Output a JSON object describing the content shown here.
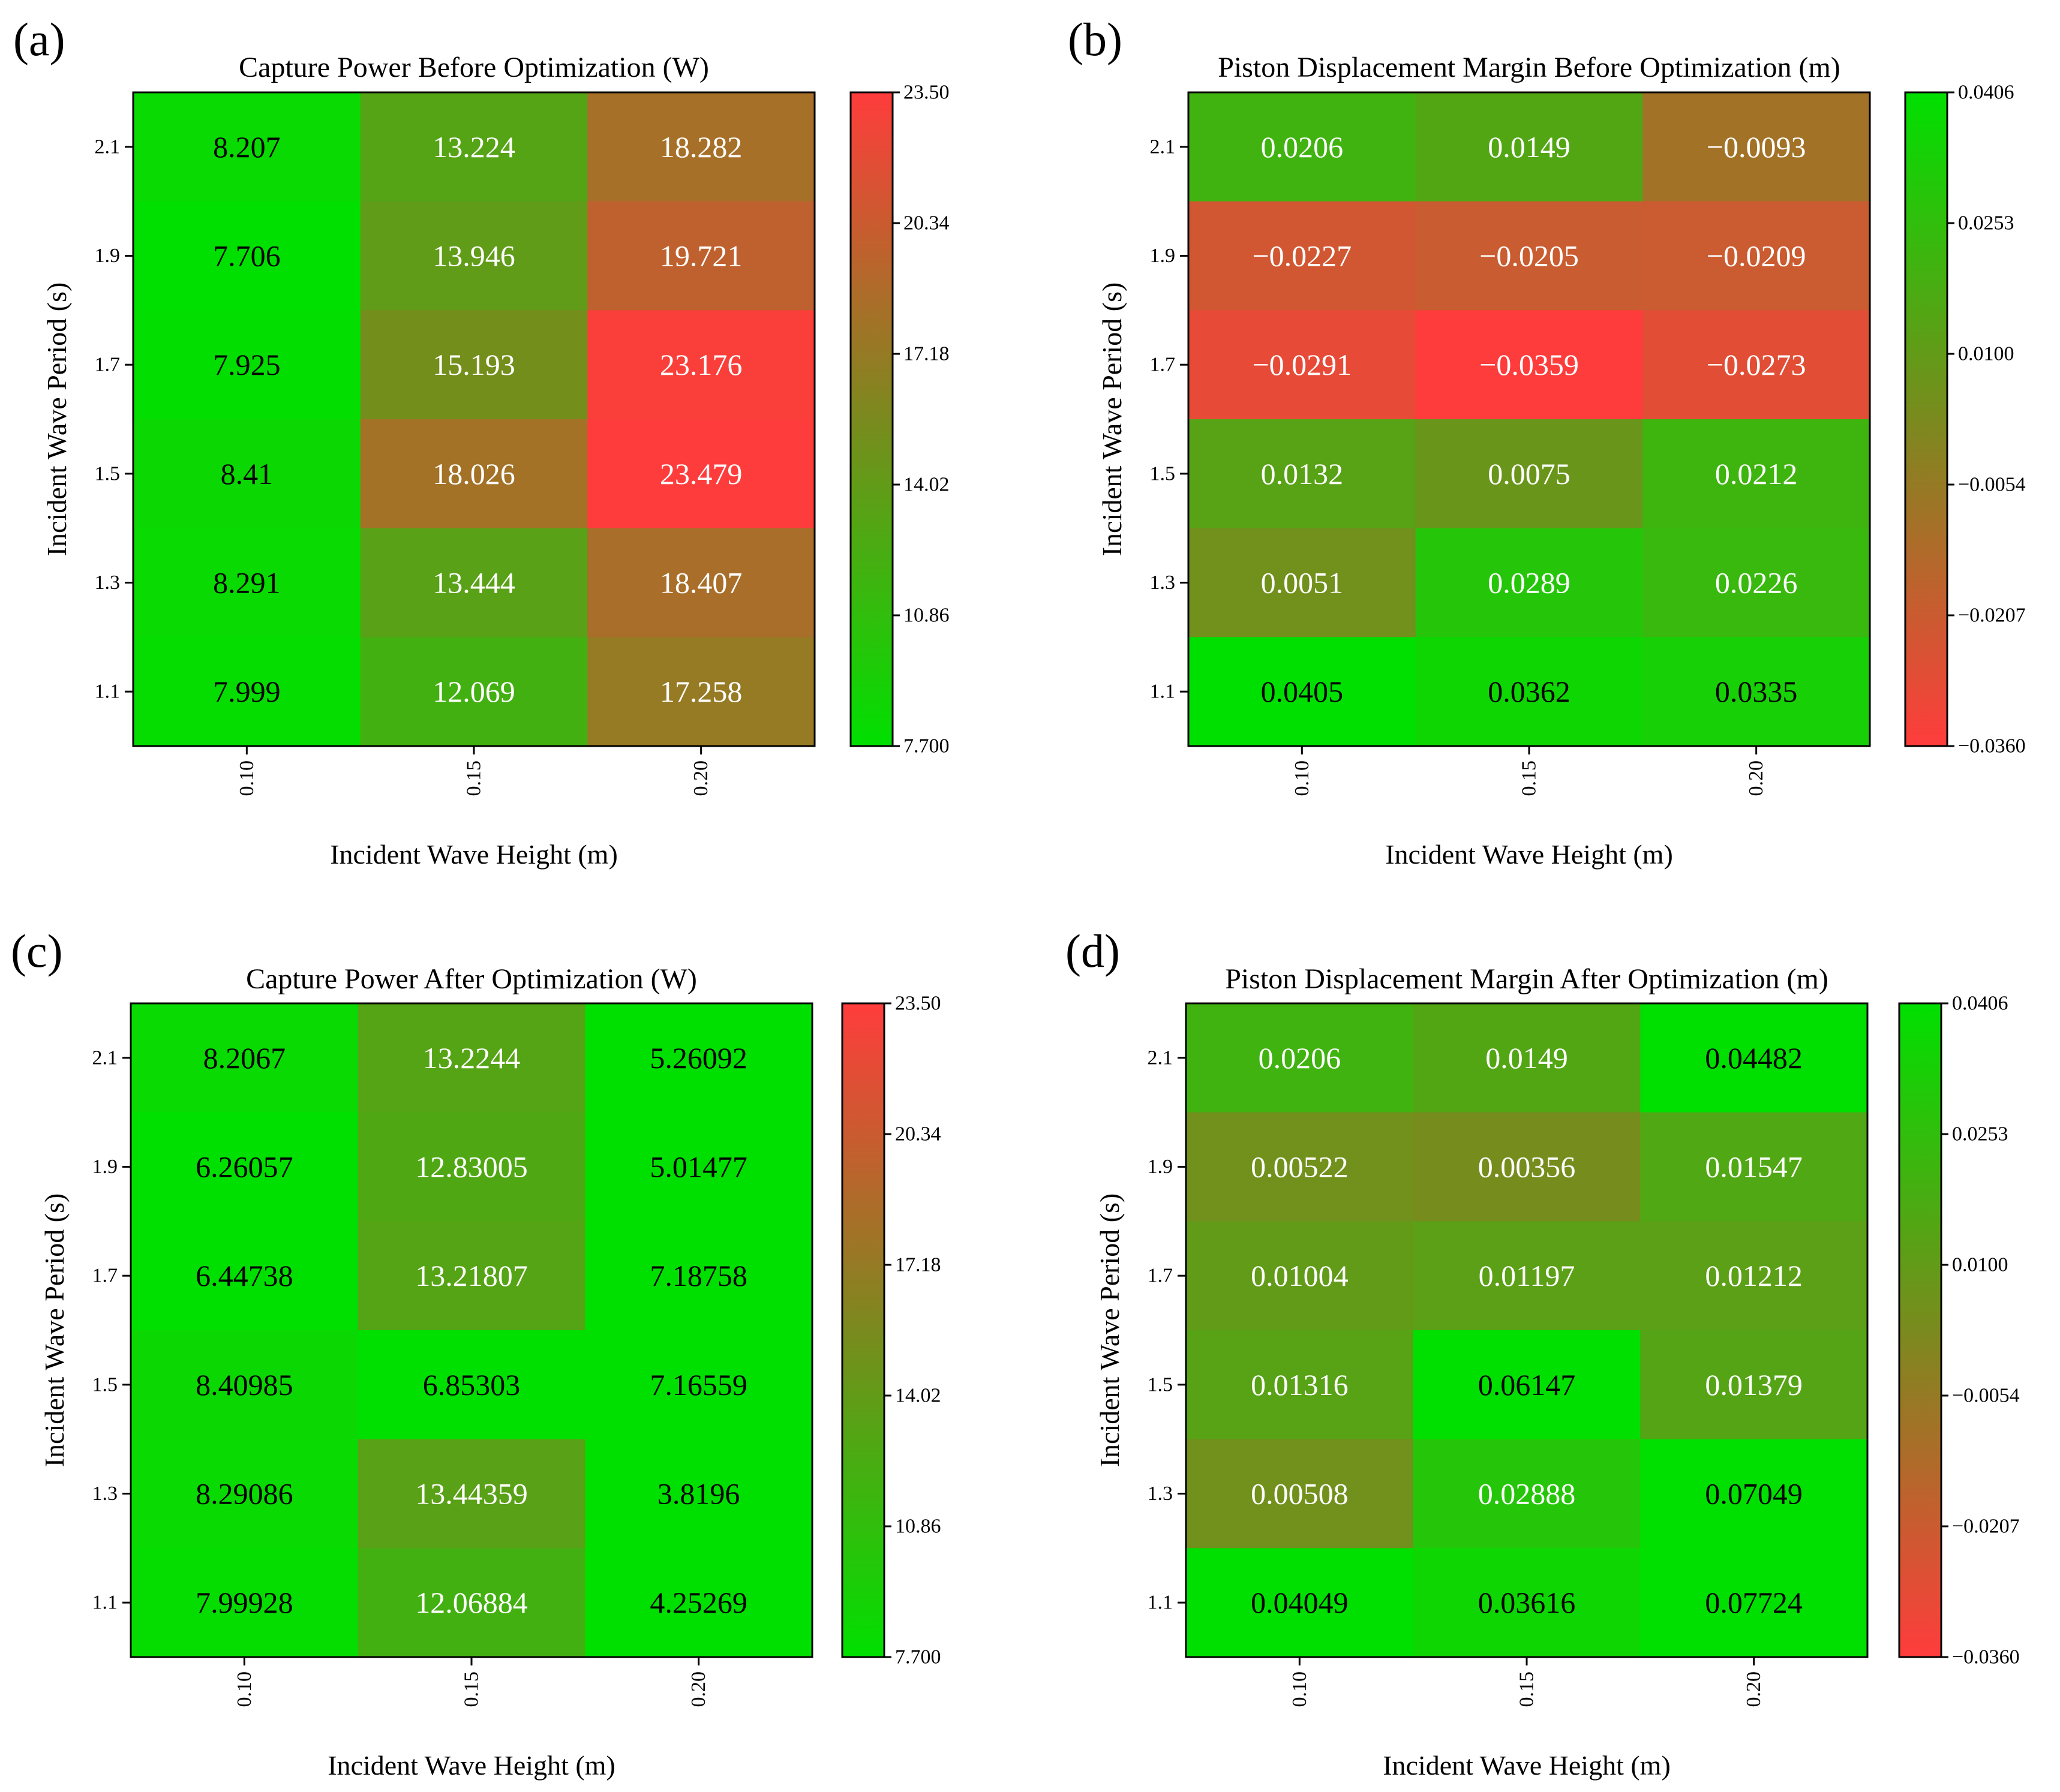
{
  "colors": {
    "low": "#00e000",
    "mid": "#7a8a1e",
    "high": "#ff3c3c",
    "dark_text": "#000000",
    "light_text": "#ffffff"
  },
  "chart_data": [
    {
      "id": "a",
      "panel_label": "(a)",
      "type": "heatmap",
      "title": "Capture Power Before Optimization (W)",
      "xlabel": "Incident Wave Height (m)",
      "ylabel": "Incident Wave Period (s)",
      "x_ticks": [
        "0.10",
        "0.15",
        "0.20"
      ],
      "y_ticks": [
        "2.1",
        "1.9",
        "1.7",
        "1.5",
        "1.3",
        "1.1"
      ],
      "values": [
        [
          8.207,
          13.224,
          18.282
        ],
        [
          7.706,
          13.946,
          19.721
        ],
        [
          7.925,
          15.193,
          23.176
        ],
        [
          8.41,
          18.026,
          23.479
        ],
        [
          8.291,
          13.444,
          18.407
        ],
        [
          7.999,
          12.069,
          17.258
        ]
      ],
      "cell_labels": [
        [
          "8.207",
          "13.224",
          "18.282"
        ],
        [
          "7.706",
          "13.946",
          "19.721"
        ],
        [
          "7.925",
          "15.193",
          "23.176"
        ],
        [
          "8.41",
          "18.026",
          "23.479"
        ],
        [
          "8.291",
          "13.444",
          "18.407"
        ],
        [
          "7.999",
          "12.069",
          "17.258"
        ]
      ],
      "colorbar": {
        "vmin": 7.7,
        "vmax": 23.5,
        "ticks": [
          "23.50",
          "20.34",
          "17.18",
          "14.02",
          "10.86",
          "7.700"
        ],
        "reverse": false
      }
    },
    {
      "id": "b",
      "panel_label": "(b)",
      "type": "heatmap",
      "title": "Piston Displacement Margin Before Optimization (m)",
      "xlabel": "Incident Wave Height (m)",
      "ylabel": "Incident Wave Period (s)",
      "x_ticks": [
        "0.10",
        "0.15",
        "0.20"
      ],
      "y_ticks": [
        "2.1",
        "1.9",
        "1.7",
        "1.5",
        "1.3",
        "1.1"
      ],
      "values": [
        [
          0.0206,
          0.0149,
          -0.0093
        ],
        [
          -0.0227,
          -0.0205,
          -0.0209
        ],
        [
          -0.0291,
          -0.0359,
          -0.0273
        ],
        [
          0.0132,
          0.0075,
          0.0212
        ],
        [
          0.0051,
          0.0289,
          0.0226
        ],
        [
          0.0405,
          0.0362,
          0.0335
        ]
      ],
      "cell_labels": [
        [
          "0.0206",
          "0.0149",
          "−0.0093"
        ],
        [
          "−0.0227",
          "−0.0205",
          "−0.0209"
        ],
        [
          "−0.0291",
          "−0.0359",
          "−0.0273"
        ],
        [
          "0.0132",
          "0.0075",
          "0.0212"
        ],
        [
          "0.0051",
          "0.0289",
          "0.0226"
        ],
        [
          "0.0405",
          "0.0362",
          "0.0335"
        ]
      ],
      "colorbar": {
        "vmin": -0.036,
        "vmax": 0.0406,
        "ticks": [
          "0.0406",
          "0.0253",
          "0.0100",
          "−0.0054",
          "−0.0207",
          "−0.0360"
        ],
        "reverse": true
      }
    },
    {
      "id": "c",
      "panel_label": "(c)",
      "type": "heatmap",
      "title": "Capture Power After Optimization (W)",
      "xlabel": "Incident Wave Height (m)",
      "ylabel": "Incident Wave Period (s)",
      "x_ticks": [
        "0.10",
        "0.15",
        "0.20"
      ],
      "y_ticks": [
        "2.1",
        "1.9",
        "1.7",
        "1.5",
        "1.3",
        "1.1"
      ],
      "values": [
        [
          8.2067,
          13.2244,
          5.26092
        ],
        [
          6.26057,
          12.83005,
          5.01477
        ],
        [
          6.44738,
          13.21807,
          7.18758
        ],
        [
          8.40985,
          6.85303,
          7.16559
        ],
        [
          8.29086,
          13.44359,
          3.8196
        ],
        [
          7.99928,
          12.06884,
          4.25269
        ]
      ],
      "cell_labels": [
        [
          "8.2067",
          "13.2244",
          "5.26092"
        ],
        [
          "6.26057",
          "12.83005",
          "5.01477"
        ],
        [
          "6.44738",
          "13.21807",
          "7.18758"
        ],
        [
          "8.40985",
          "6.85303",
          "7.16559"
        ],
        [
          "8.29086",
          "13.44359",
          "3.8196"
        ],
        [
          "7.99928",
          "12.06884",
          "4.25269"
        ]
      ],
      "colorbar": {
        "vmin": 7.7,
        "vmax": 23.5,
        "ticks": [
          "23.50",
          "20.34",
          "17.18",
          "14.02",
          "10.86",
          "7.700"
        ],
        "reverse": false
      }
    },
    {
      "id": "d",
      "panel_label": "(d)",
      "type": "heatmap",
      "title": "Piston Displacement Margin After Optimization (m)",
      "xlabel": "Incident Wave Height (m)",
      "ylabel": "Incident Wave Period (s)",
      "x_ticks": [
        "0.10",
        "0.15",
        "0.20"
      ],
      "y_ticks": [
        "2.1",
        "1.9",
        "1.7",
        "1.5",
        "1.3",
        "1.1"
      ],
      "values": [
        [
          0.0206,
          0.0149,
          0.04482
        ],
        [
          0.00522,
          0.00356,
          0.01547
        ],
        [
          0.01004,
          0.01197,
          0.01212
        ],
        [
          0.01316,
          0.06147,
          0.01379
        ],
        [
          0.00508,
          0.02888,
          0.07049
        ],
        [
          0.04049,
          0.03616,
          0.07724
        ]
      ],
      "cell_labels": [
        [
          "0.0206",
          "0.0149",
          "0.04482"
        ],
        [
          "0.00522",
          "0.00356",
          "0.01547"
        ],
        [
          "0.01004",
          "0.01197",
          "0.01212"
        ],
        [
          "0.01316",
          "0.06147",
          "0.01379"
        ],
        [
          "0.00508",
          "0.02888",
          "0.07049"
        ],
        [
          "0.04049",
          "0.03616",
          "0.07724"
        ]
      ],
      "colorbar": {
        "vmin": -0.036,
        "vmax": 0.0406,
        "ticks": [
          "0.0406",
          "0.0253",
          "0.0100",
          "−0.0054",
          "−0.0207",
          "−0.0360"
        ],
        "reverse": true
      }
    }
  ]
}
